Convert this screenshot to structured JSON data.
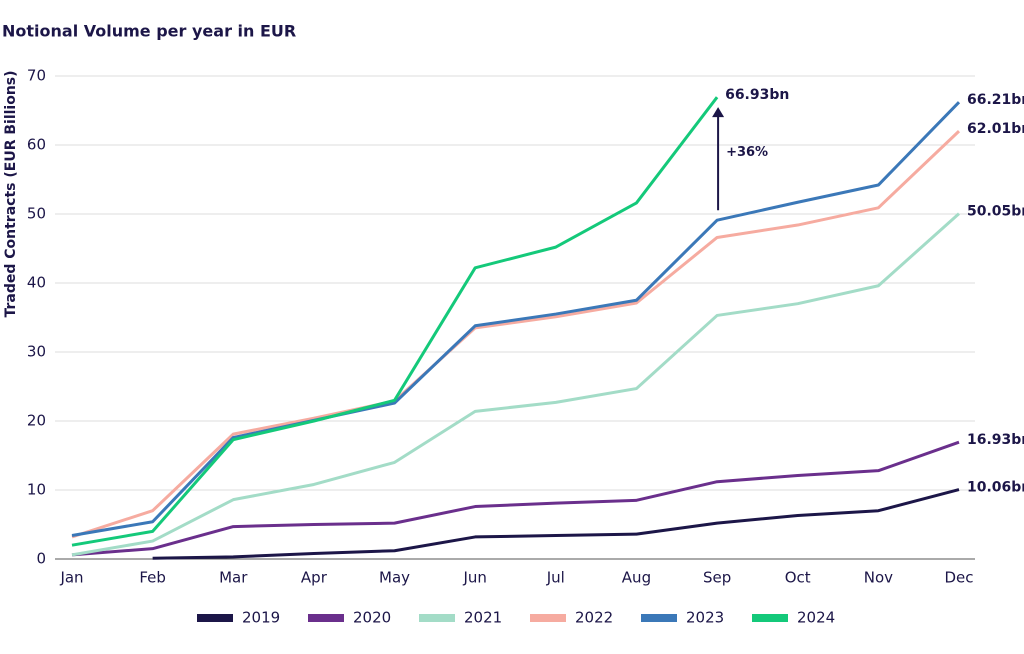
{
  "chart_data": {
    "type": "line",
    "title": "Notional Volume per year in EUR",
    "y_label": "Traded Contracts (EUR Billions)",
    "categories": [
      "Jan",
      "Feb",
      "Mar",
      "Apr",
      "May",
      "Jun",
      "Jul",
      "Aug",
      "Sep",
      "Oct",
      "Nov",
      "Dec"
    ],
    "ylim": [
      0,
      70
    ],
    "yticks": [
      0,
      10,
      20,
      30,
      40,
      50,
      60,
      70
    ],
    "grid": true,
    "legend": "bottom",
    "annotation": "+36%",
    "series": [
      {
        "name": "2019",
        "color": "#1c1648",
        "values": [
          null,
          0.1,
          0.3,
          0.8,
          1.2,
          3.2,
          3.4,
          3.6,
          5.2,
          6.3,
          7.0,
          10.06
        ],
        "value_labels": [
          null,
          null,
          null,
          null,
          null,
          null,
          null,
          null,
          null,
          null,
          null,
          "10.06bn"
        ]
      },
      {
        "name": "2020",
        "color": "#6a2f8c",
        "values": [
          0.6,
          1.5,
          4.7,
          5.0,
          5.2,
          7.6,
          8.1,
          8.5,
          11.2,
          12.1,
          12.8,
          16.93
        ],
        "value_labels": [
          null,
          null,
          null,
          null,
          null,
          null,
          null,
          null,
          null,
          null,
          null,
          "16.93bn"
        ]
      },
      {
        "name": "2021",
        "color": "#a3dcc7",
        "values": [
          0.6,
          2.6,
          8.6,
          10.8,
          14.0,
          21.4,
          22.7,
          24.7,
          35.3,
          37.0,
          39.6,
          50.05
        ],
        "value_labels": [
          null,
          null,
          null,
          null,
          null,
          null,
          null,
          null,
          null,
          null,
          null,
          "50.05bn"
        ]
      },
      {
        "name": "2022",
        "color": "#f6aba0",
        "values": [
          3.2,
          7.0,
          18.1,
          20.4,
          22.9,
          33.5,
          35.1,
          37.1,
          46.6,
          48.4,
          50.9,
          62.01
        ],
        "value_labels": [
          null,
          null,
          null,
          null,
          null,
          null,
          null,
          null,
          null,
          null,
          null,
          "62.01bn"
        ]
      },
      {
        "name": "2023",
        "color": "#3b78b8",
        "values": [
          3.4,
          5.4,
          17.6,
          20.1,
          22.6,
          33.8,
          35.5,
          37.5,
          49.1,
          51.7,
          54.2,
          66.21
        ],
        "value_labels": [
          null,
          null,
          null,
          null,
          null,
          null,
          null,
          null,
          null,
          null,
          null,
          "66.21bn"
        ]
      },
      {
        "name": "2024",
        "color": "#14c97a",
        "values": [
          2.0,
          4.0,
          17.3,
          20.0,
          23.0,
          42.2,
          45.2,
          51.6,
          66.93,
          null,
          null,
          null
        ],
        "value_labels": [
          null,
          null,
          null,
          null,
          null,
          null,
          null,
          null,
          "66.93bn",
          null,
          null,
          null
        ]
      }
    ]
  }
}
